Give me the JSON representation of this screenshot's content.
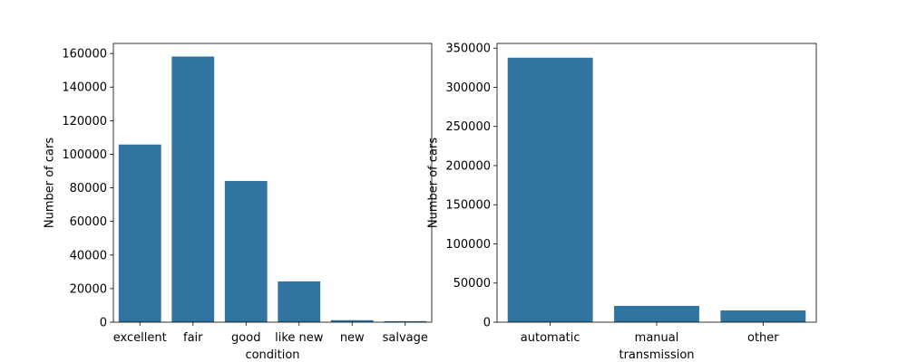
{
  "chart_data": [
    {
      "type": "bar",
      "title": "",
      "xlabel": "condition",
      "ylabel": "Number of cars",
      "categories": [
        "excellent",
        "fair",
        "good",
        "like new",
        "new",
        "salvage"
      ],
      "values": [
        105800,
        158200,
        84100,
        24300,
        1200,
        600
      ],
      "ylim": [
        0,
        166000
      ],
      "yticks": [
        0,
        20000,
        40000,
        60000,
        80000,
        100000,
        120000,
        140000,
        160000
      ],
      "color": "#3274a1",
      "grid": false
    },
    {
      "type": "bar",
      "title": "",
      "xlabel": "transmission",
      "ylabel": "Number of cars",
      "categories": [
        "automatic",
        "manual",
        "other"
      ],
      "values": [
        337800,
        20800,
        15000
      ],
      "ylim": [
        0,
        356000
      ],
      "yticks": [
        0,
        50000,
        100000,
        150000,
        200000,
        250000,
        300000,
        350000
      ],
      "color": "#3274a1",
      "grid": false
    }
  ]
}
